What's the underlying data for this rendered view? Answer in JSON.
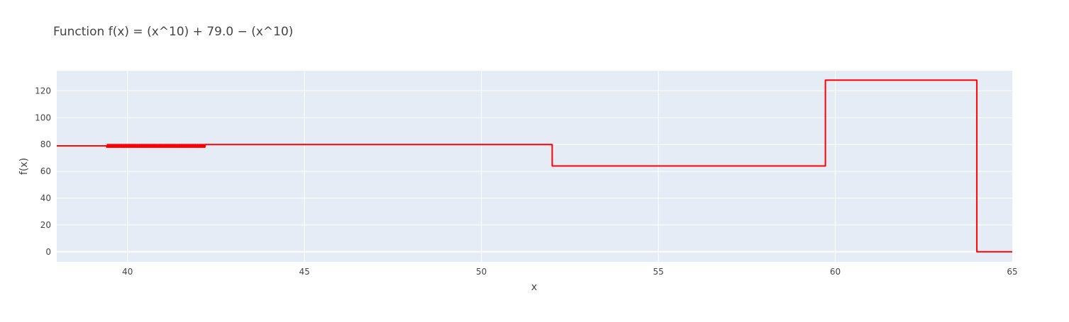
{
  "chart_data": {
    "type": "line",
    "title": "Function f(x) = (x^10) + 79.0 − (x^10)",
    "xlabel": "x",
    "ylabel": "f(x)",
    "xlim": [
      38,
      65
    ],
    "ylim": [
      -7.5,
      135
    ],
    "x_ticks": [
      40,
      45,
      50,
      55,
      60,
      65
    ],
    "y_ticks": [
      0,
      20,
      40,
      60,
      80,
      100,
      120
    ],
    "grid": true,
    "legend": "none",
    "colors": {
      "plot_background": "#e5ecf6",
      "grid": "#ffffff",
      "line": "#ff0000"
    },
    "series": [
      {
        "color": "#ff0000",
        "noise": {
          "x_start": 39.4,
          "x_end": 42.2,
          "low": 78,
          "high": 80
        },
        "x": [
          38,
          39.4,
          42.2,
          52.0,
          52.0,
          59.72,
          59.72,
          64.0,
          64.0,
          65
        ],
        "y": [
          79,
          79,
          80,
          80,
          64,
          64,
          128,
          128,
          0,
          0
        ]
      }
    ]
  }
}
